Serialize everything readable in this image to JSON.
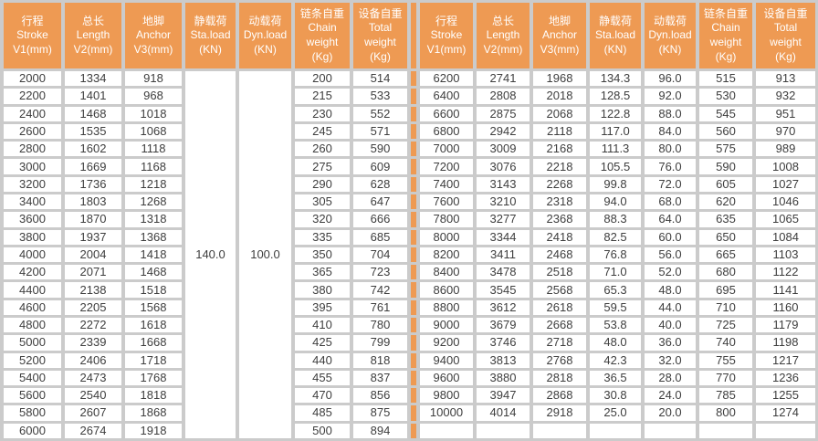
{
  "table": {
    "colors": {
      "header_bg": "#ee9a53",
      "header_text": "#ffffff",
      "grid": "#cbcbcb",
      "cell_bg": "#ffffff",
      "body_text": "#3e3e3e",
      "divider": "#ee9a53"
    },
    "header_columns": [
      {
        "key": "stroke",
        "lines": [
          "行程",
          "Stroke",
          "V1(mm)"
        ]
      },
      {
        "key": "length",
        "lines": [
          "总长",
          "Length",
          "V2(mm)"
        ]
      },
      {
        "key": "anchor",
        "lines": [
          "地脚",
          "Anchor",
          "V3(mm)"
        ]
      },
      {
        "key": "sta",
        "lines": [
          "静载荷",
          "Sta.load",
          "(KN)"
        ]
      },
      {
        "key": "dyn",
        "lines": [
          "动载荷",
          "Dyn.load",
          "(KN)"
        ]
      },
      {
        "key": "chain",
        "lines": [
          "链条自重",
          "Chain",
          "weight",
          "(Kg)"
        ]
      },
      {
        "key": "total",
        "lines": [
          "设备自重",
          "Total",
          "weight",
          "(Kg)"
        ]
      }
    ],
    "left": {
      "sta_load_merged": "140.0",
      "dyn_load_merged": "100.0",
      "rows": [
        {
          "stroke": "2000",
          "length": "1334",
          "anchor": "918",
          "chain": "200",
          "total": "514"
        },
        {
          "stroke": "2200",
          "length": "1401",
          "anchor": "968",
          "chain": "215",
          "total": "533"
        },
        {
          "stroke": "2400",
          "length": "1468",
          "anchor": "1018",
          "chain": "230",
          "total": "552"
        },
        {
          "stroke": "2600",
          "length": "1535",
          "anchor": "1068",
          "chain": "245",
          "total": "571"
        },
        {
          "stroke": "2800",
          "length": "1602",
          "anchor": "1118",
          "chain": "260",
          "total": "590"
        },
        {
          "stroke": "3000",
          "length": "1669",
          "anchor": "1168",
          "chain": "275",
          "total": "609"
        },
        {
          "stroke": "3200",
          "length": "1736",
          "anchor": "1218",
          "chain": "290",
          "total": "628"
        },
        {
          "stroke": "3400",
          "length": "1803",
          "anchor": "1268",
          "chain": "305",
          "total": "647"
        },
        {
          "stroke": "3600",
          "length": "1870",
          "anchor": "1318",
          "chain": "320",
          "total": "666"
        },
        {
          "stroke": "3800",
          "length": "1937",
          "anchor": "1368",
          "chain": "335",
          "total": "685"
        },
        {
          "stroke": "4000",
          "length": "2004",
          "anchor": "1418",
          "chain": "350",
          "total": "704"
        },
        {
          "stroke": "4200",
          "length": "2071",
          "anchor": "1468",
          "chain": "365",
          "total": "723"
        },
        {
          "stroke": "4400",
          "length": "2138",
          "anchor": "1518",
          "chain": "380",
          "total": "742"
        },
        {
          "stroke": "4600",
          "length": "2205",
          "anchor": "1568",
          "chain": "395",
          "total": "761"
        },
        {
          "stroke": "4800",
          "length": "2272",
          "anchor": "1618",
          "chain": "410",
          "total": "780"
        },
        {
          "stroke": "5000",
          "length": "2339",
          "anchor": "1668",
          "chain": "425",
          "total": "799"
        },
        {
          "stroke": "5200",
          "length": "2406",
          "anchor": "1718",
          "chain": "440",
          "total": "818"
        },
        {
          "stroke": "5400",
          "length": "2473",
          "anchor": "1768",
          "chain": "455",
          "total": "837"
        },
        {
          "stroke": "5600",
          "length": "2540",
          "anchor": "1818",
          "chain": "470",
          "total": "856"
        },
        {
          "stroke": "5800",
          "length": "2607",
          "anchor": "1868",
          "chain": "485",
          "total": "875"
        },
        {
          "stroke": "6000",
          "length": "2674",
          "anchor": "1918",
          "chain": "500",
          "total": "894"
        }
      ]
    },
    "right": {
      "rows": [
        {
          "stroke": "6200",
          "length": "2741",
          "anchor": "1968",
          "sta": "134.3",
          "dyn": "96.0",
          "chain": "515",
          "total": "913"
        },
        {
          "stroke": "6400",
          "length": "2808",
          "anchor": "2018",
          "sta": "128.5",
          "dyn": "92.0",
          "chain": "530",
          "total": "932"
        },
        {
          "stroke": "6600",
          "length": "2875",
          "anchor": "2068",
          "sta": "122.8",
          "dyn": "88.0",
          "chain": "545",
          "total": "951"
        },
        {
          "stroke": "6800",
          "length": "2942",
          "anchor": "2118",
          "sta": "117.0",
          "dyn": "84.0",
          "chain": "560",
          "total": "970"
        },
        {
          "stroke": "7000",
          "length": "3009",
          "anchor": "2168",
          "sta": "111.3",
          "dyn": "80.0",
          "chain": "575",
          "total": "989"
        },
        {
          "stroke": "7200",
          "length": "3076",
          "anchor": "2218",
          "sta": "105.5",
          "dyn": "76.0",
          "chain": "590",
          "total": "1008"
        },
        {
          "stroke": "7400",
          "length": "3143",
          "anchor": "2268",
          "sta": "99.8",
          "dyn": "72.0",
          "chain": "605",
          "total": "1027"
        },
        {
          "stroke": "7600",
          "length": "3210",
          "anchor": "2318",
          "sta": "94.0",
          "dyn": "68.0",
          "chain": "620",
          "total": "1046"
        },
        {
          "stroke": "7800",
          "length": "3277",
          "anchor": "2368",
          "sta": "88.3",
          "dyn": "64.0",
          "chain": "635",
          "total": "1065"
        },
        {
          "stroke": "8000",
          "length": "3344",
          "anchor": "2418",
          "sta": "82.5",
          "dyn": "60.0",
          "chain": "650",
          "total": "1084"
        },
        {
          "stroke": "8200",
          "length": "3411",
          "anchor": "2468",
          "sta": "76.8",
          "dyn": "56.0",
          "chain": "665",
          "total": "1103"
        },
        {
          "stroke": "8400",
          "length": "3478",
          "anchor": "2518",
          "sta": "71.0",
          "dyn": "52.0",
          "chain": "680",
          "total": "1122"
        },
        {
          "stroke": "8600",
          "length": "3545",
          "anchor": "2568",
          "sta": "65.3",
          "dyn": "48.0",
          "chain": "695",
          "total": "1141"
        },
        {
          "stroke": "8800",
          "length": "3612",
          "anchor": "2618",
          "sta": "59.5",
          "dyn": "44.0",
          "chain": "710",
          "total": "1160"
        },
        {
          "stroke": "9000",
          "length": "3679",
          "anchor": "2668",
          "sta": "53.8",
          "dyn": "40.0",
          "chain": "725",
          "total": "1179"
        },
        {
          "stroke": "9200",
          "length": "3746",
          "anchor": "2718",
          "sta": "48.0",
          "dyn": "36.0",
          "chain": "740",
          "total": "1198"
        },
        {
          "stroke": "9400",
          "length": "3813",
          "anchor": "2768",
          "sta": "42.3",
          "dyn": "32.0",
          "chain": "755",
          "total": "1217"
        },
        {
          "stroke": "9600",
          "length": "3880",
          "anchor": "2818",
          "sta": "36.5",
          "dyn": "28.0",
          "chain": "770",
          "total": "1236"
        },
        {
          "stroke": "9800",
          "length": "3947",
          "anchor": "2868",
          "sta": "30.8",
          "dyn": "24.0",
          "chain": "785",
          "total": "1255"
        },
        {
          "stroke": "10000",
          "length": "4014",
          "anchor": "2918",
          "sta": "25.0",
          "dyn": "20.0",
          "chain": "800",
          "total": "1274"
        },
        {
          "stroke": "",
          "length": "",
          "anchor": "",
          "sta": "",
          "dyn": "",
          "chain": "",
          "total": ""
        }
      ]
    }
  }
}
